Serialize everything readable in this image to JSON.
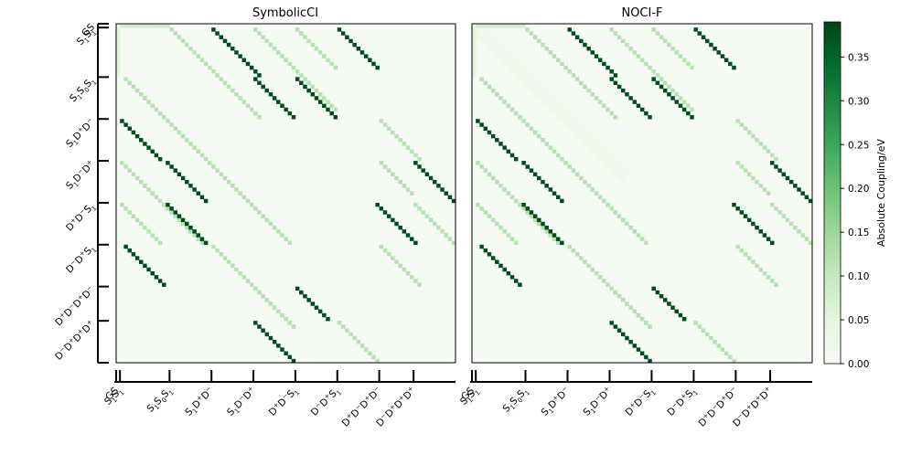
{
  "chart_data": {
    "type": "heatmap",
    "panels": [
      {
        "title": "SymbolicCI",
        "noise": false
      },
      {
        "title": "NOCI-F",
        "noise": true
      }
    ],
    "state_labels": [
      "GS",
      "S1S1",
      "S1S0S1",
      "S1D+D−",
      "S1D−D+",
      "D+D−S1",
      "D−D+S1",
      "D+D−D+D−",
      "D−D+D+D+"
    ],
    "state_labels_rendered": [
      [
        "GS"
      ],
      [
        "S",
        "1",
        "S",
        "1"
      ],
      [
        "S",
        "1",
        "S",
        "0",
        "S",
        "1"
      ],
      [
        "S",
        "1",
        "D",
        "+",
        "D",
        "−"
      ],
      [
        "S",
        "1",
        "D",
        "−",
        "D",
        "+"
      ],
      [
        "D",
        "+",
        "D",
        "−",
        "S",
        "1"
      ],
      [
        "D",
        "−",
        "D",
        "+",
        "S",
        "1"
      ],
      [
        "D",
        "+",
        "D",
        "−",
        "D",
        "+",
        "D",
        "−"
      ],
      [
        "D",
        "−",
        "D",
        "+",
        "D",
        "+",
        "D",
        "+"
      ]
    ],
    "block_sizes": [
      1,
      13,
      11,
      11,
      11,
      11,
      11,
      9,
      11
    ],
    "n_states": 89,
    "strong_diagonals": [
      {
        "row0": 1,
        "col0": 25,
        "len": 13,
        "value": 0.38
      },
      {
        "row0": 1,
        "col0": 58,
        "len": 11,
        "value": 0.38
      },
      {
        "row0": 14,
        "col0": 36,
        "len": 11,
        "value": 0.38
      },
      {
        "row0": 14,
        "col0": 47,
        "len": 11,
        "value": 0.38
      },
      {
        "row0": 25,
        "col0": 1,
        "len": 11,
        "value": 0.38
      },
      {
        "row0": 36,
        "col0": 13,
        "len": 11,
        "value": 0.38
      },
      {
        "row0": 36,
        "col0": 78,
        "len": 11,
        "value": 0.38
      },
      {
        "row0": 47,
        "col0": 13,
        "len": 11,
        "value": 0.38
      },
      {
        "row0": 47,
        "col0": 68,
        "len": 11,
        "value": 0.38
      },
      {
        "row0": 58,
        "col0": 2,
        "len": 11,
        "value": 0.38
      },
      {
        "row0": 69,
        "col0": 47,
        "len": 9,
        "value": 0.38
      },
      {
        "row0": 78,
        "col0": 36,
        "len": 11,
        "value": 0.38
      }
    ],
    "weak_diagonals": [
      {
        "row0": 1,
        "col0": 14,
        "len": 24,
        "value": 0.12
      },
      {
        "row0": 1,
        "col0": 36,
        "len": 22,
        "value": 0.12
      },
      {
        "row0": 1,
        "col0": 47,
        "len": 11,
        "value": 0.12
      },
      {
        "row0": 14,
        "col0": 2,
        "len": 44,
        "value": 0.12
      },
      {
        "row0": 25,
        "col0": 69,
        "len": 11,
        "value": 0.12
      },
      {
        "row0": 36,
        "col0": 1,
        "len": 22,
        "value": 0.12
      },
      {
        "row0": 36,
        "col0": 69,
        "len": 9,
        "value": 0.12
      },
      {
        "row0": 47,
        "col0": 1,
        "len": 11,
        "value": 0.12
      },
      {
        "row0": 47,
        "col0": 78,
        "len": 11,
        "value": 0.12
      },
      {
        "row0": 58,
        "col0": 25,
        "len": 22,
        "value": 0.12
      },
      {
        "row0": 58,
        "col0": 69,
        "len": 11,
        "value": 0.12
      },
      {
        "row0": 69,
        "col0": 36,
        "len": 11,
        "value": 0.12
      },
      {
        "row0": 78,
        "col0": 58,
        "len": 11,
        "value": 0.12
      }
    ],
    "gs_row_values": {
      "cols": [
        1,
        13
      ],
      "value": 0.08
    },
    "colorbar": {
      "label": "Absolute Coupling/eV",
      "ticks": [
        "0.00",
        "0.05",
        "0.10",
        "0.15",
        "0.20",
        "0.25",
        "0.30",
        "0.35"
      ],
      "min": 0.0,
      "max": 0.39,
      "colormap": "Greens"
    },
    "grid": false,
    "legend": "none"
  }
}
